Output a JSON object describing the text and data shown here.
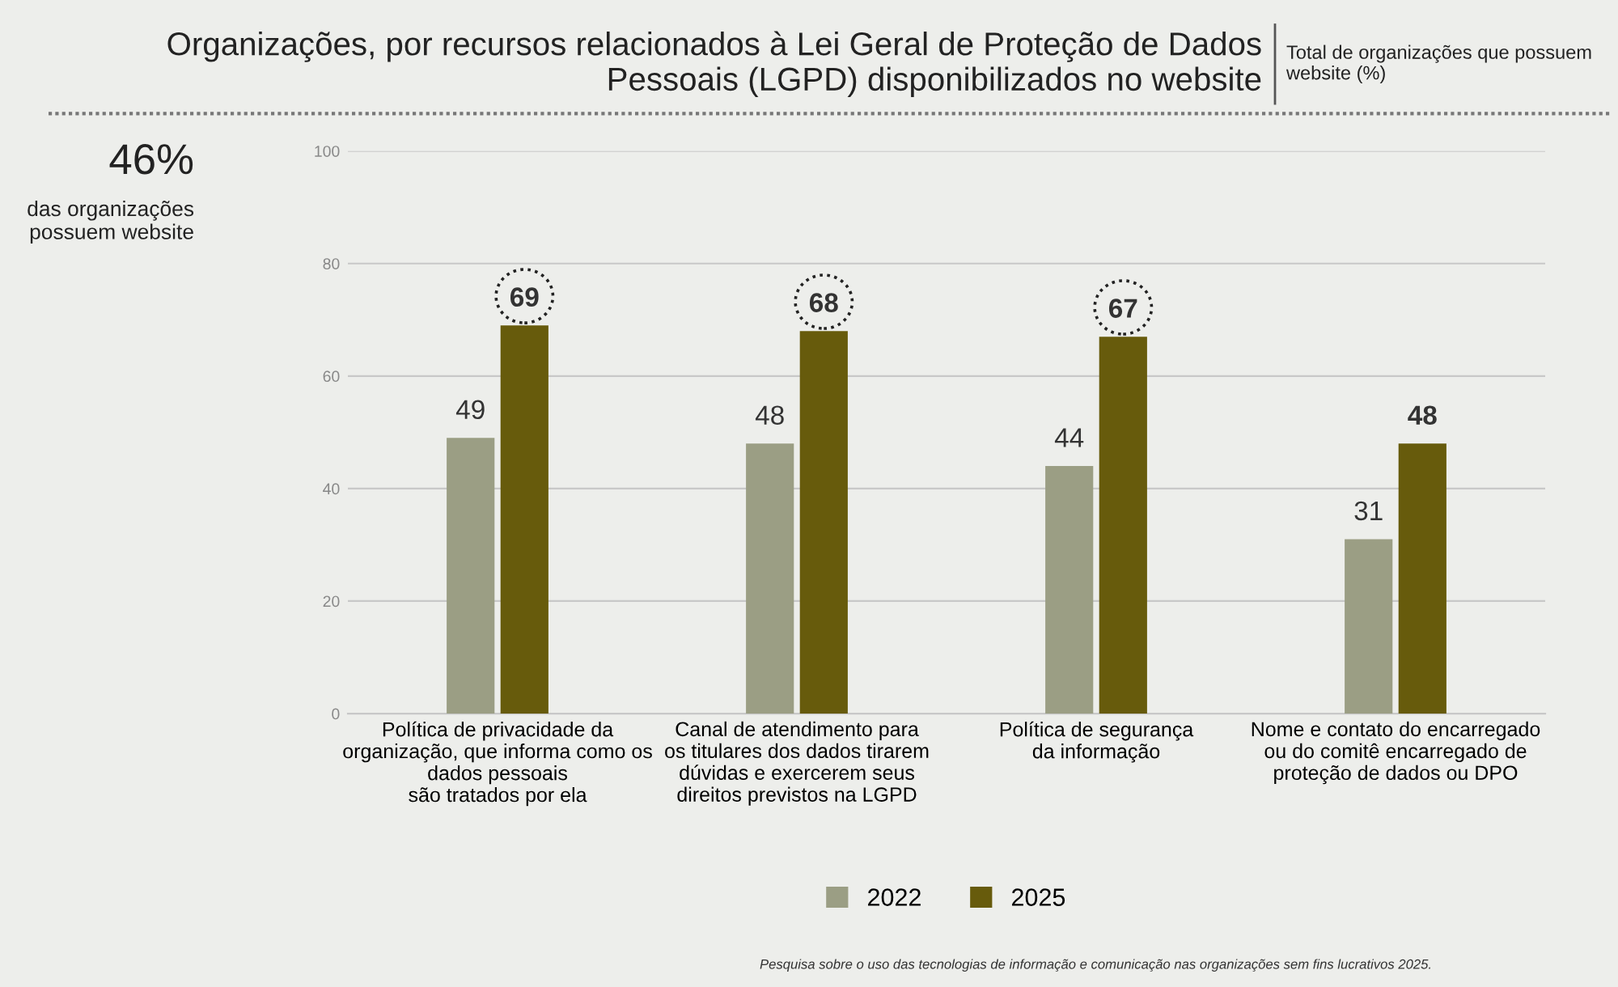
{
  "chart_data": {
    "type": "bar",
    "title": "Organizações, por recursos relacionados à Lei Geral de Proteção de Dados\nPessoais (LGPD) disponibilizados no website",
    "subtitle": "Total de organizações que possuem\nwebsite (%)",
    "annotations": [
      "46%",
      "das organizações\npossuem website",
      "Pesquisa sobre o uso das tecnologias de informação e comunicação nas organizações sem fins lucrativos 2025."
    ],
    "categories": [
      "Política de privacidade da\norganização, que informa como os\ndados pessoais\nsão tratados por ela",
      "Canal de atendimento para\nos titulares dos dados tirarem\ndúvidas e exercerem seus\ndireitos previstos na LGPD",
      "Política de segurança\nda informação",
      "Nome e contato do encarregado\nou do comitê encarregado de\nproteção de dados ou DPO"
    ],
    "series": [
      {
        "name": "2022",
        "color": "#9b9e84",
        "values": [
          49,
          48,
          44,
          31
        ]
      },
      {
        "name": "2025",
        "color": "#675b0c",
        "values": [
          69,
          68,
          67,
          48
        ]
      }
    ],
    "ylim": [
      0,
      100
    ],
    "yticks": [
      0,
      20,
      40,
      60,
      80,
      100
    ],
    "grid": "y",
    "legend": "bottom",
    "data_labels": true
  }
}
